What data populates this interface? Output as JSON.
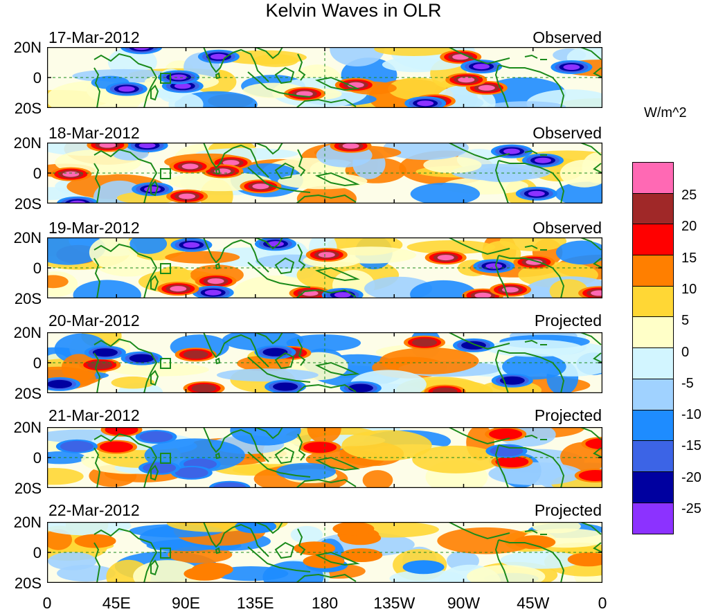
{
  "title": "Kelvin Waves in OLR",
  "panels": [
    {
      "date": "17-Mar-2012",
      "status": "Observed"
    },
    {
      "date": "18-Mar-2012",
      "status": "Observed"
    },
    {
      "date": "19-Mar-2012",
      "status": "Observed"
    },
    {
      "date": "20-Mar-2012",
      "status": "Projected"
    },
    {
      "date": "21-Mar-2012",
      "status": "Projected"
    },
    {
      "date": "22-Mar-2012",
      "status": "Projected"
    }
  ],
  "y_ticks": [
    "20N",
    "0",
    "20S"
  ],
  "x_ticks": [
    "0",
    "45E",
    "90E",
    "135E",
    "180",
    "135W",
    "90W",
    "45W",
    "0"
  ],
  "colorbar": {
    "unit": "W/m^2",
    "labels": [
      "25",
      "20",
      "15",
      "10",
      "5",
      "0",
      "-5",
      "-10",
      "-15",
      "-20",
      "-25"
    ],
    "colors": [
      "#ff69b4",
      "#a02828",
      "#ff0000",
      "#ff7f00",
      "#ffd735",
      "#ffffc8",
      "#d2f5ff",
      "#a0d2ff",
      "#1e8cff",
      "#3c64e6",
      "#0000a0",
      "#8c32ff"
    ]
  }
}
